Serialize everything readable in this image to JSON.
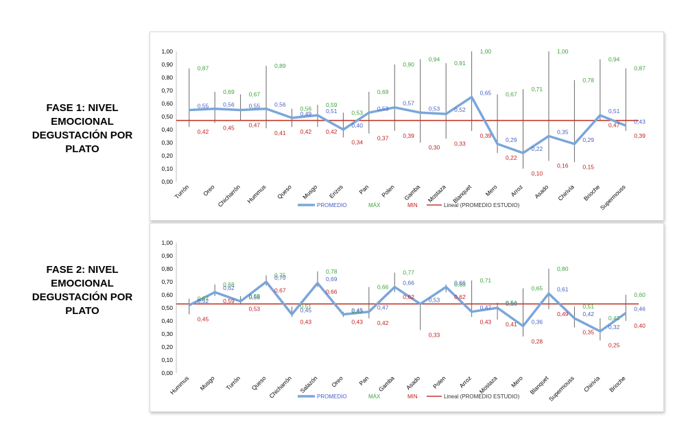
{
  "phase_labels": [
    {
      "line1": "FASE 1: NIVEL",
      "line2": "EMOCIONAL",
      "line3": "DEGUSTACIÓN POR",
      "line4": "PLATO"
    },
    {
      "line1": "FASE 2: NIVEL",
      "line2": "EMOCIONAL",
      "line3": "DEGUSTACIÓN POR",
      "line4": "PLATO"
    }
  ],
  "colors": {
    "promedio_line": "#7aa6da",
    "promedio_label": "#4a5fc1",
    "max_label": "#3fa33f",
    "min_label": "#c02020",
    "lineal": "#c0392b",
    "range_bar": "#666666",
    "axis": "#bfbfbf"
  },
  "chart_data": [
    {
      "type": "line",
      "ylim": [
        0,
        1
      ],
      "yticks": [
        "0,00",
        "0,10",
        "0,20",
        "0,30",
        "0,40",
        "0,50",
        "0,60",
        "0,70",
        "0,80",
        "0,90",
        "1,00"
      ],
      "categories": [
        "Turrón",
        "Oreo",
        "Chicharrón",
        "Hummus",
        "Queso",
        "Musgo",
        "Erizos",
        "Pan",
        "Polen",
        "Gamba",
        "Mostaza",
        "Blanquet",
        "Mero",
        "Arroz",
        "Asado",
        "Chirivía",
        "Brioche",
        "Supermouss"
      ],
      "series": [
        {
          "name": "PROMEDIO",
          "values": [
            0.55,
            0.56,
            0.55,
            0.56,
            0.49,
            0.51,
            0.4,
            0.53,
            0.57,
            0.53,
            0.52,
            0.65,
            0.29,
            0.22,
            0.35,
            0.29,
            0.51,
            0.43
          ],
          "labels": [
            "0,55",
            "0,56",
            "0,55",
            "0,56",
            "0,49",
            "0,51",
            "0,40",
            "0,53",
            "0,57",
            "0,53",
            "0,52",
            "0,65",
            "0,29",
            "0,22",
            "0,35",
            "0,29",
            "0,51",
            "0,43"
          ]
        },
        {
          "name": "MÁX",
          "values": [
            0.87,
            0.69,
            0.67,
            0.89,
            0.56,
            0.59,
            0.53,
            0.69,
            0.9,
            0.94,
            0.91,
            1.0,
            0.67,
            0.71,
            1.0,
            0.78,
            0.94,
            0.87
          ],
          "labels": [
            "0,87",
            "0,69",
            "0,67",
            "0,89",
            "0,56",
            "0,59",
            "0,53",
            "0,69",
            "0,90",
            "0,94",
            "0,91",
            "1,00",
            "0,67",
            "0,71",
            "1,00",
            "0,78",
            "0,94",
            "0,87"
          ]
        },
        {
          "name": "MIN",
          "values": [
            0.42,
            0.45,
            0.47,
            0.41,
            0.42,
            0.42,
            0.34,
            0.37,
            0.39,
            0.3,
            0.33,
            0.39,
            0.22,
            0.1,
            0.16,
            0.15,
            0.47,
            0.39
          ],
          "labels": [
            "0,42",
            "0,45",
            "0,47",
            "0,41",
            "0,42",
            "0,42",
            "0,34",
            "0,37",
            "0,39",
            "0,30",
            "0,33",
            "0,39",
            "0,22",
            "0,10",
            "0,16",
            "0,15",
            "0,47",
            "0,39"
          ]
        },
        {
          "name": "Lineal (PROMEDIO ESTUDIO)",
          "value": 0.47
        }
      ],
      "legend": [
        "PROMEDIO",
        "MÁX",
        "MIN",
        "Lineal (PROMEDIO ESTUDIO)"
      ],
      "legend_position": "bottom"
    },
    {
      "type": "line",
      "ylim": [
        0,
        1
      ],
      "yticks": [
        "0,00",
        "0,10",
        "0,20",
        "0,30",
        "0,40",
        "0,50",
        "0,60",
        "0,70",
        "0,80",
        "0,90",
        "1,00"
      ],
      "categories": [
        "Hummus",
        "Musgo",
        "Turrón",
        "Queso",
        "Chicharrón",
        "Salazón",
        "Oreo",
        "Pan",
        "Gamba",
        "Asado",
        "Polen",
        "Arroz",
        "Mostaza",
        "Mero",
        "Blanquet",
        "Supermouss",
        "Chirivía",
        "Brioche"
      ],
      "series": [
        {
          "name": "PROMEDIO",
          "values": [
            0.52,
            0.62,
            0.55,
            0.7,
            0.45,
            0.69,
            0.45,
            0.47,
            0.66,
            0.53,
            0.66,
            0.47,
            0.5,
            0.36,
            0.61,
            0.42,
            0.32,
            0.46
          ],
          "labels": [
            "0,52",
            "0,62",
            "0,55",
            "0,70",
            "0,45",
            "0,69",
            "0,45",
            "0,47",
            "0,66",
            "0,53",
            "0,66",
            "0,47",
            "0,50",
            "0,36",
            "0,61",
            "0,42",
            "0,32",
            "0,46"
          ]
        },
        {
          "name": "MÁX",
          "values": [
            0.57,
            0.68,
            0.59,
            0.75,
            0.51,
            0.78,
            0.47,
            0.66,
            0.77,
            null,
            0.68,
            0.71,
            0.54,
            0.65,
            0.8,
            0.51,
            0.42,
            0.6
          ],
          "labels": [
            "0,57",
            "0,68",
            "0,59",
            "0,75",
            "0,51",
            "0,78",
            "0,47",
            "0,66",
            "0,77",
            "",
            "0,68",
            "0,71",
            "0,54",
            "0,65",
            "0,80",
            "0,51",
            "0,42",
            "0,60"
          ]
        },
        {
          "name": "MIN",
          "values": [
            0.45,
            0.59,
            0.53,
            0.67,
            0.43,
            0.66,
            0.43,
            0.42,
            0.62,
            0.33,
            0.62,
            0.43,
            0.41,
            0.28,
            0.49,
            0.35,
            0.25,
            0.4
          ],
          "labels": [
            "0,45",
            "0,59",
            "0,53",
            "0,67",
            "0,43",
            "0,66",
            "0,43",
            "0,42",
            "0,62",
            "0,33",
            "0,62",
            "0,43",
            "0,41",
            "0,28",
            "0,49",
            "0,35",
            "0,25",
            "0,40"
          ]
        },
        {
          "name": "Lineal (PROMEDIO ESTUDIO)",
          "value": 0.53
        }
      ],
      "legend": [
        "PROMEDIO",
        "MÁX",
        "MIN",
        "Lineal (PROMEDIO ESTUDIO)"
      ],
      "legend_position": "bottom"
    }
  ]
}
